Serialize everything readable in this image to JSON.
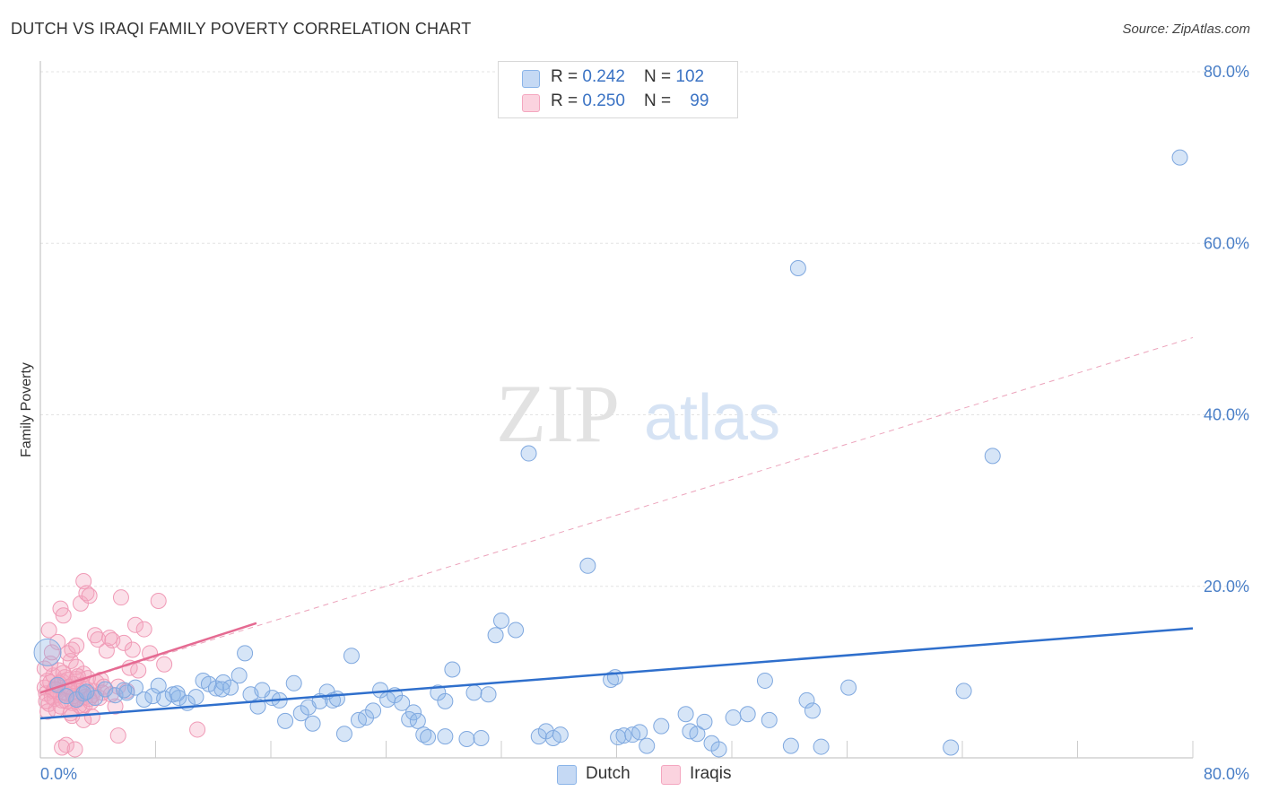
{
  "title": "DUTCH VS IRAQI FAMILY POVERTY CORRELATION CHART",
  "source": "Source: ZipAtlas.com",
  "watermark": {
    "zip": "ZIP",
    "atlas": "atlas"
  },
  "legend": {
    "rows": [
      {
        "r_label": "R = ",
        "r_value": "0.242",
        "n_label": "N = ",
        "n_value": "102"
      },
      {
        "r_label": "R = ",
        "r_value": "0.250",
        "n_label": "N = ",
        "n_value": "99"
      }
    ]
  },
  "chart_data": {
    "type": "scatter",
    "title": "DUTCH VS IRAQI FAMILY POVERTY CORRELATION CHART",
    "xlabel": "",
    "ylabel": "Family Poverty",
    "xlim": [
      0,
      80
    ],
    "ylim": [
      0,
      80
    ],
    "x_tick_labels": [
      "0.0%",
      "80.0%"
    ],
    "y_tick_labels": [
      "20.0%",
      "40.0%",
      "60.0%",
      "80.0%"
    ],
    "y_ticks": [
      20,
      40,
      60,
      80
    ],
    "x_minor_ticks": [
      8,
      16,
      24,
      32,
      40,
      48,
      56,
      64,
      72,
      80
    ],
    "colors": {
      "Dutch": "#8ab4e8",
      "Dutch_line": "#2f6fcc",
      "Iraqis": "#f4a6bf",
      "Iraqis_line": "#e56a92"
    },
    "series": [
      {
        "name": "Dutch",
        "R": 0.242,
        "N": 102,
        "trend": {
          "x": [
            0,
            80
          ],
          "y": [
            4.6,
            15.1
          ]
        },
        "points": [
          [
            0.5,
            12.3
          ],
          [
            1.2,
            8.5
          ],
          [
            1.8,
            7.2
          ],
          [
            2.5,
            6.8
          ],
          [
            3.0,
            7.5
          ],
          [
            3.8,
            7.0
          ],
          [
            4.5,
            8.0
          ],
          [
            5.2,
            7.3
          ],
          [
            6.0,
            7.6
          ],
          [
            6.6,
            8.2
          ],
          [
            7.2,
            6.8
          ],
          [
            7.8,
            7.2
          ],
          [
            8.2,
            8.4
          ],
          [
            8.6,
            6.9
          ],
          [
            9.2,
            7.4
          ],
          [
            9.6,
            7.0
          ],
          [
            10.2,
            6.4
          ],
          [
            10.8,
            7.1
          ],
          [
            11.3,
            9.0
          ],
          [
            11.7,
            8.6
          ],
          [
            12.2,
            8.1
          ],
          [
            12.7,
            8.8
          ],
          [
            13.2,
            8.2
          ],
          [
            13.8,
            9.6
          ],
          [
            14.2,
            12.2
          ],
          [
            14.6,
            7.4
          ],
          [
            15.1,
            6.0
          ],
          [
            15.4,
            7.9
          ],
          [
            16.1,
            7.0
          ],
          [
            16.6,
            6.7
          ],
          [
            17.0,
            4.3
          ],
          [
            17.6,
            8.7
          ],
          [
            18.1,
            5.2
          ],
          [
            18.6,
            5.9
          ],
          [
            18.9,
            4.0
          ],
          [
            19.4,
            6.6
          ],
          [
            19.9,
            7.7
          ],
          [
            20.3,
            6.7
          ],
          [
            20.6,
            6.9
          ],
          [
            21.1,
            2.8
          ],
          [
            21.6,
            11.9
          ],
          [
            22.1,
            4.4
          ],
          [
            22.6,
            4.7
          ],
          [
            23.1,
            5.5
          ],
          [
            23.6,
            7.9
          ],
          [
            24.1,
            6.8
          ],
          [
            24.6,
            7.3
          ],
          [
            25.1,
            6.4
          ],
          [
            25.6,
            4.5
          ],
          [
            25.9,
            5.3
          ],
          [
            26.2,
            4.3
          ],
          [
            26.6,
            2.7
          ],
          [
            26.9,
            2.4
          ],
          [
            27.6,
            7.6
          ],
          [
            28.1,
            6.6
          ],
          [
            28.6,
            10.3
          ],
          [
            28.1,
            2.5
          ],
          [
            29.6,
            2.2
          ],
          [
            30.1,
            7.6
          ],
          [
            30.6,
            2.3
          ],
          [
            31.1,
            7.4
          ],
          [
            31.6,
            14.3
          ],
          [
            32.0,
            16.0
          ],
          [
            33.0,
            14.9
          ],
          [
            34.6,
            2.5
          ],
          [
            35.1,
            3.1
          ],
          [
            35.6,
            2.3
          ],
          [
            36.1,
            2.7
          ],
          [
            38.0,
            22.4
          ],
          [
            39.6,
            9.1
          ],
          [
            39.9,
            9.4
          ],
          [
            40.1,
            2.4
          ],
          [
            40.5,
            2.6
          ],
          [
            41.1,
            2.7
          ],
          [
            41.6,
            3.0
          ],
          [
            42.1,
            1.4
          ],
          [
            43.1,
            3.7
          ],
          [
            44.8,
            5.1
          ],
          [
            45.1,
            3.1
          ],
          [
            45.6,
            2.8
          ],
          [
            46.1,
            4.2
          ],
          [
            46.6,
            1.7
          ],
          [
            47.1,
            1.0
          ],
          [
            48.1,
            4.7
          ],
          [
            49.1,
            5.1
          ],
          [
            50.3,
            9.0
          ],
          [
            50.6,
            4.4
          ],
          [
            52.1,
            1.4
          ],
          [
            52.6,
            57.1
          ],
          [
            53.2,
            6.7
          ],
          [
            53.6,
            5.5
          ],
          [
            54.2,
            1.3
          ],
          [
            56.1,
            8.2
          ],
          [
            63.2,
            1.2
          ],
          [
            64.1,
            7.8
          ],
          [
            66.1,
            35.2
          ],
          [
            79.1,
            70.0
          ],
          [
            33.9,
            35.5
          ],
          [
            12.6,
            8.0
          ],
          [
            9.5,
            7.5
          ],
          [
            5.8,
            7.9
          ],
          [
            3.2,
            7.7
          ]
        ]
      },
      {
        "name": "Iraqis",
        "R": 0.25,
        "N": 99,
        "trend": {
          "x": [
            0,
            15
          ],
          "y": [
            7.6,
            15.7
          ]
        },
        "trend_extended": {
          "x": [
            0,
            80
          ],
          "y": [
            7.6,
            49.0
          ]
        },
        "points": [
          [
            0.3,
            8.2
          ],
          [
            0.4,
            7.5
          ],
          [
            0.5,
            9.0
          ],
          [
            0.6,
            6.3
          ],
          [
            0.7,
            8.8
          ],
          [
            0.8,
            7.1
          ],
          [
            0.9,
            9.6
          ],
          [
            1.0,
            6.9
          ],
          [
            1.1,
            8.4
          ],
          [
            1.2,
            7.7
          ],
          [
            1.3,
            10.2
          ],
          [
            1.4,
            6.0
          ],
          [
            1.5,
            8.9
          ],
          [
            1.6,
            7.3
          ],
          [
            1.7,
            9.4
          ],
          [
            1.8,
            6.6
          ],
          [
            1.9,
            8.1
          ],
          [
            2.0,
            7.9
          ],
          [
            2.1,
            11.3
          ],
          [
            2.2,
            6.4
          ],
          [
            2.3,
            8.6
          ],
          [
            2.4,
            7.0
          ],
          [
            2.5,
            9.2
          ],
          [
            2.6,
            6.8
          ],
          [
            2.7,
            8.3
          ],
          [
            2.8,
            7.4
          ],
          [
            2.9,
            5.8
          ],
          [
            3.0,
            9.8
          ],
          [
            3.1,
            6.2
          ],
          [
            3.2,
            8.0
          ],
          [
            0.3,
            10.4
          ],
          [
            0.5,
            5.4
          ],
          [
            0.7,
            11.0
          ],
          [
            0.9,
            7.8
          ],
          [
            1.1,
            5.6
          ],
          [
            1.3,
            8.7
          ],
          [
            1.5,
            6.7
          ],
          [
            1.7,
            7.6
          ],
          [
            1.9,
            9.1
          ],
          [
            2.1,
            5.2
          ],
          [
            2.3,
            7.2
          ],
          [
            2.5,
            10.6
          ],
          [
            2.7,
            6.1
          ],
          [
            2.9,
            8.5
          ],
          [
            3.1,
            7.1
          ],
          [
            3.3,
            9.3
          ],
          [
            3.5,
            6.5
          ],
          [
            3.7,
            7.8
          ],
          [
            3.9,
            8.8
          ],
          [
            4.1,
            7.0
          ],
          [
            1.4,
            17.4
          ],
          [
            1.6,
            16.6
          ],
          [
            1.9,
            12.2
          ],
          [
            2.2,
            12.6
          ],
          [
            2.5,
            13.1
          ],
          [
            2.8,
            18.0
          ],
          [
            3.0,
            20.6
          ],
          [
            3.2,
            19.2
          ],
          [
            3.4,
            18.9
          ],
          [
            3.6,
            4.8
          ],
          [
            3.8,
            14.3
          ],
          [
            4.0,
            13.8
          ],
          [
            4.2,
            9.1
          ],
          [
            4.4,
            8.3
          ],
          [
            4.6,
            12.5
          ],
          [
            4.8,
            14.0
          ],
          [
            5.0,
            13.7
          ],
          [
            5.2,
            6.0
          ],
          [
            5.4,
            8.3
          ],
          [
            5.6,
            18.7
          ],
          [
            5.8,
            13.4
          ],
          [
            6.0,
            7.8
          ],
          [
            6.2,
            10.5
          ],
          [
            6.4,
            12.6
          ],
          [
            6.6,
            15.5
          ],
          [
            6.8,
            10.2
          ],
          [
            7.2,
            15.0
          ],
          [
            7.6,
            12.2
          ],
          [
            8.2,
            18.3
          ],
          [
            8.6,
            10.9
          ],
          [
            1.5,
            1.2
          ],
          [
            1.8,
            1.5
          ],
          [
            2.4,
            1.0
          ],
          [
            5.4,
            2.6
          ],
          [
            10.9,
            3.3
          ],
          [
            0.8,
            12.3
          ],
          [
            1.2,
            13.5
          ],
          [
            0.6,
            14.9
          ],
          [
            3.6,
            7.3
          ],
          [
            4.3,
            7.6
          ],
          [
            2.0,
            8.3
          ],
          [
            1.0,
            8.0
          ],
          [
            2.6,
            9.5
          ],
          [
            3.4,
            6.9
          ],
          [
            0.4,
            6.6
          ],
          [
            1.6,
            9.9
          ],
          [
            2.2,
            4.9
          ],
          [
            4.9,
            7.4
          ],
          [
            3.0,
            4.4
          ]
        ]
      }
    ]
  }
}
